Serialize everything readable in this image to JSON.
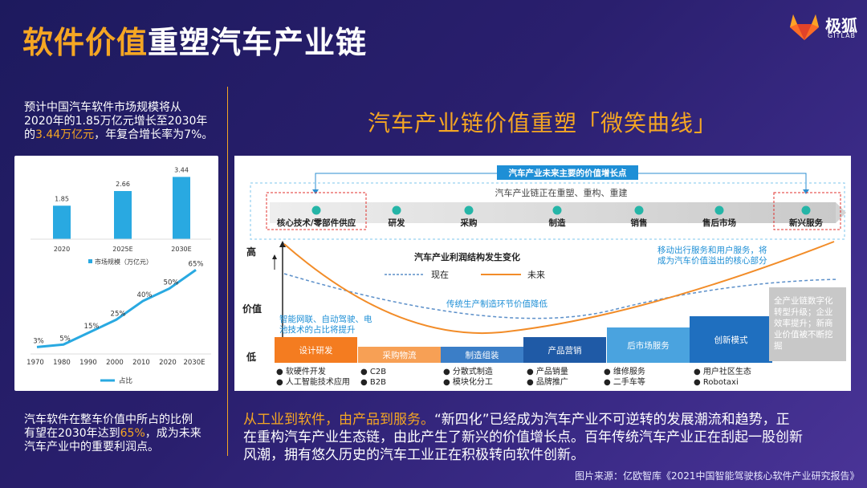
{
  "title": {
    "part1": "软件价值",
    "part2": "重塑汽车产业链"
  },
  "logo": {
    "name": "极狐",
    "sub": "GITLAB",
    "colors": [
      "#e24329",
      "#fc6d26",
      "#fca326"
    ]
  },
  "left_top": {
    "line1": "预计中国汽车软件市场规模将从",
    "line2": "2020年的1.85万亿元增长至2030年",
    "line3_hl": "3.44万亿元",
    "line3_pre": "的",
    "line3_post": "，年复合增长率为7%。"
  },
  "left_bottom": {
    "line1": "汽车软件在整车价值中所占的比例",
    "line2_pre": "有望在2030年达到",
    "line2_hl": "65%",
    "line2_post": "，成为未来",
    "line3": "汽车产业中的重要利润点。"
  },
  "chart_data": [
    {
      "type": "bar",
      "categories": [
        "2020",
        "2025E",
        "2030E"
      ],
      "values": [
        1.85,
        2.66,
        3.44
      ],
      "data_labels": [
        "1.85",
        "2.66",
        "3.44"
      ],
      "legend": "市场规模（万亿元）",
      "color": "#29a9e1",
      "ylim": [
        0,
        4
      ]
    },
    {
      "type": "line",
      "x": [
        "1970",
        "1980",
        "1990",
        "2000",
        "2010",
        "2020",
        "2030E"
      ],
      "y_points": [
        [
          1970,
          3
        ],
        [
          1980,
          5
        ],
        [
          1990,
          15
        ],
        [
          2000,
          25
        ],
        [
          2010,
          40
        ],
        [
          2020,
          50
        ],
        [
          2030,
          65
        ]
      ],
      "data_labels": [
        "3%",
        "5%",
        "15%",
        "25%",
        "40%",
        "50%",
        "65%"
      ],
      "legend": "占比",
      "color": "#29a9e1",
      "ylim": [
        0,
        70
      ]
    }
  ],
  "subtitle": "汽车产业链价值重塑「微笑曲线」",
  "smile": {
    "top_banner": "汽车产业未来主要的价值增长点",
    "chain_note": "汽车产业链正在重塑、重构、重建",
    "stages": [
      "核心技术/零部件供应",
      "研发",
      "采购",
      "制造",
      "销售",
      "售后市场",
      "新兴服务"
    ],
    "yaxis": {
      "high": "高",
      "mid": "价值",
      "low": "低"
    },
    "curve_title": "汽车产业利润结构发生变化",
    "legend_now": "现在",
    "legend_future": "未来",
    "note_mobility": "移动出行服务和用户服务，将成为汽车价值溢出的核心部分",
    "note_mobility_l1": "移动出行服务和用户服务，将",
    "note_mobility_l2": "成为汽车价值溢出的核心部分",
    "note_traditional": "传统生产制造环节价值降低",
    "note_left_l1": "智能网联、自动驾驶、电",
    "note_left_l2": "池技术的占比将提升",
    "note_right_l1": "全产业链数字化",
    "note_right_l2": "转型升级；企业",
    "note_right_l3": "效率提升；新商",
    "note_right_l4": "业价值被不断挖",
    "note_right_l5": "掘",
    "steps": [
      {
        "label": "设计研发",
        "color": "#f47c20",
        "bullets": [
          "软硬件开发",
          "人工智能技术应用"
        ]
      },
      {
        "label": "采购物流",
        "color": "#f7a055",
        "bullets": [
          "C2B",
          "B2B"
        ]
      },
      {
        "label": "制造组装",
        "color": "#3b7ec7",
        "bullets": [
          "分散式制造",
          "模块化分工"
        ]
      },
      {
        "label": "产品营销",
        "color": "#1f5aa6",
        "bullets": [
          "产品销量",
          "品牌推广"
        ]
      },
      {
        "label": "后市场服务",
        "color": "#4aa3df",
        "bullets": [
          "维修服务",
          "二手车等"
        ]
      },
      {
        "label": "创新模式",
        "color": "#1f6fbf",
        "bullets": [
          "用户社区生态",
          "Robotaxi"
        ]
      }
    ]
  },
  "bottom": {
    "hl": "从工业到软件，由产品到服务。",
    "rest1": "“新四化”已经成为汽车产业不可逆转的发展潮流和趋势，正",
    "line2": "在重构汽车产业生态链，由此产生了新兴的价值增长点。百年传统汽车产业正在刮起一股创新",
    "line3": "风潮，拥有悠久历史的汽车工业正在积极转向软件创新。"
  },
  "source": "图片来源：亿欧智库《2021中国智能驾驶核心软件产业研究报告》"
}
